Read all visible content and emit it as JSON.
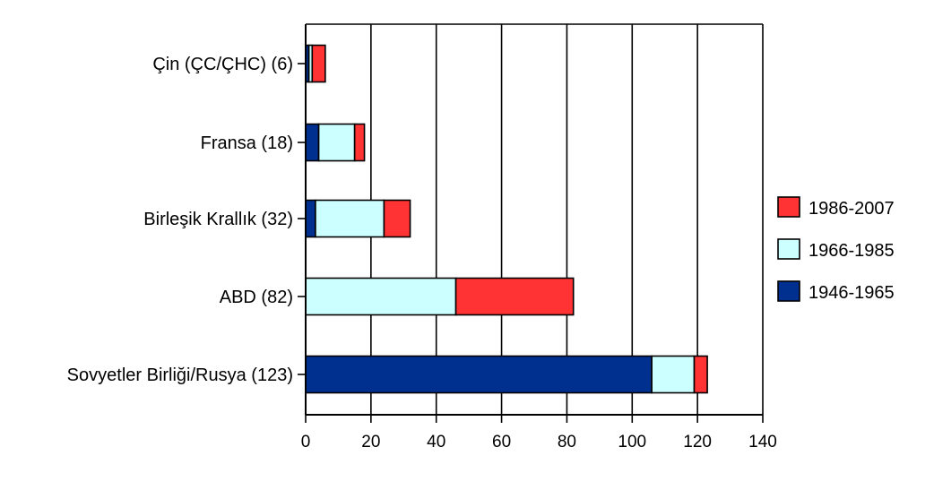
{
  "chart_data": {
    "type": "bar",
    "orientation": "horizontal",
    "stacked": true,
    "title": "",
    "xlabel": "",
    "ylabel": "",
    "categories": [
      "Çin (ÇC/ÇHC) (6)",
      "Fransa (18)",
      "Birleşik Krallık (32)",
      "ABD (82)",
      "Sovyetler Birliği/Rusya (123)"
    ],
    "series": [
      {
        "name": "1946-1965",
        "color": "#00308f",
        "values": [
          1,
          4,
          3,
          0,
          106
        ]
      },
      {
        "name": "1966-1985",
        "color": "#ccffff",
        "values": [
          1,
          11,
          21,
          46,
          13
        ]
      },
      {
        "name": "1986-2007",
        "color": "#ff3333",
        "values": [
          4,
          3,
          8,
          36,
          4
        ]
      }
    ],
    "legend_order": [
      "1986-2007",
      "1966-1985",
      "1946-1965"
    ],
    "xlim": [
      0,
      140
    ],
    "xticks": [
      0,
      20,
      40,
      60,
      80,
      100,
      120,
      140
    ],
    "grid": "vertical",
    "legend_position": "right"
  }
}
